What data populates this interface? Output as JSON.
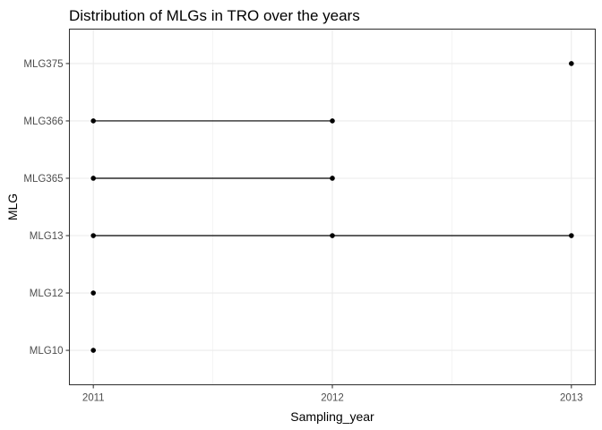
{
  "chart_data": {
    "type": "scatter",
    "title": "Distribution of MLGs in TRO over the years",
    "xlabel": "Sampling_year",
    "ylabel": "MLG",
    "x_ticks": [
      2011,
      2012,
      2013
    ],
    "xlim": [
      2010.9,
      2013.1
    ],
    "y_categories": [
      "MLG10",
      "MLG12",
      "MLG13",
      "MLG365",
      "MLG366",
      "MLG375"
    ],
    "grid": true,
    "legend": "none",
    "points": [
      {
        "mlg": "MLG10",
        "year": 2011
      },
      {
        "mlg": "MLG12",
        "year": 2011
      },
      {
        "mlg": "MLG13",
        "year": 2011
      },
      {
        "mlg": "MLG13",
        "year": 2012
      },
      {
        "mlg": "MLG13",
        "year": 2013
      },
      {
        "mlg": "MLG365",
        "year": 2011
      },
      {
        "mlg": "MLG365",
        "year": 2012
      },
      {
        "mlg": "MLG366",
        "year": 2011
      },
      {
        "mlg": "MLG366",
        "year": 2012
      },
      {
        "mlg": "MLG375",
        "year": 2013
      }
    ],
    "segments": [
      {
        "mlg": "MLG13",
        "from": 2011,
        "to": 2013
      },
      {
        "mlg": "MLG365",
        "from": 2011,
        "to": 2012
      },
      {
        "mlg": "MLG366",
        "from": 2011,
        "to": 2012
      }
    ],
    "colors": {
      "marks": "#000000",
      "grid": "#ebebeb",
      "border": "#333333",
      "tick_text": "#4d4d4d"
    }
  }
}
